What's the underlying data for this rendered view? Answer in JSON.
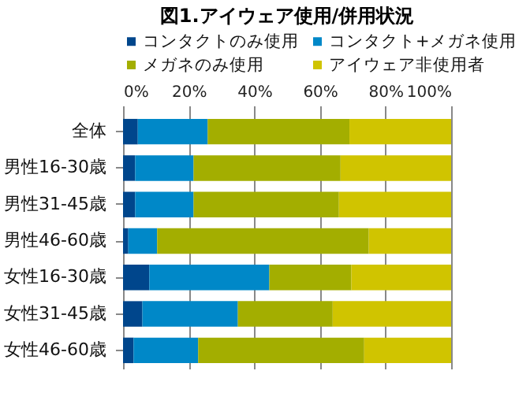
{
  "chart_data": {
    "type": "bar",
    "orientation": "horizontal",
    "stacked": true,
    "title": "図1.アイウェア使用/併用状況",
    "categories": [
      "全体",
      "男性16-30歳",
      "男性31-45歳",
      "男性46-60歳",
      "女性16-30歳",
      "女性31-45歳",
      "女性46-60歳"
    ],
    "series": [
      {
        "name": "コンタクトのみ使用",
        "color": "#00468c",
        "values": [
          4.5,
          3.7,
          3.7,
          1.6,
          8.0,
          5.9,
          3.2
        ]
      },
      {
        "name": "コンタクト+メガネ使用",
        "color": "#0088c8",
        "values": [
          21.3,
          17.8,
          17.8,
          8.8,
          36.6,
          29.1,
          19.7
        ]
      },
      {
        "name": "メガネのみ使用",
        "color": "#a3ae00",
        "values": [
          43.2,
          44.8,
          44.3,
          64.5,
          25.0,
          28.9,
          50.6
        ]
      },
      {
        "name": "アイウェア非使用者",
        "color": "#d0c400",
        "values": [
          31.0,
          33.7,
          34.2,
          25.1,
          30.4,
          36.1,
          26.5
        ]
      }
    ],
    "xlim": [
      0,
      100
    ],
    "xticks": [
      {
        "value": 0,
        "label": "0%"
      },
      {
        "value": 20,
        "label": "20%"
      },
      {
        "value": 40,
        "label": "40%"
      },
      {
        "value": 60,
        "label": "60%"
      },
      {
        "value": 80,
        "label": "80%"
      },
      {
        "value": 100,
        "label": "100%"
      }
    ],
    "grid": "x",
    "legend": "top"
  }
}
